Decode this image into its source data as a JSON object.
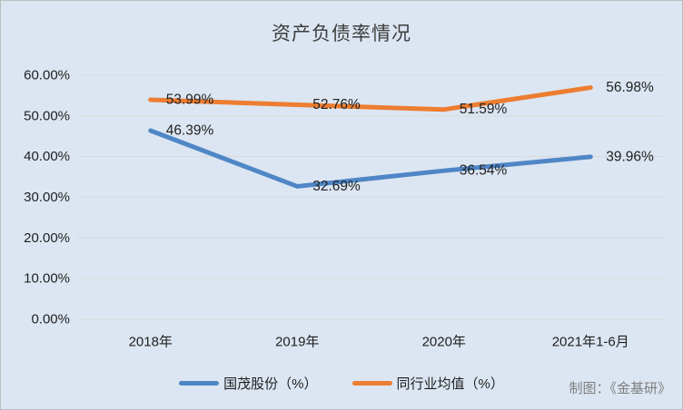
{
  "window": {
    "background_color": "#dce6f2",
    "border_color": "#bdbdbd"
  },
  "chart": {
    "credit": "制图：《金基研》"
  },
  "chart_data": {
    "type": "line",
    "title": "资产负债率情况",
    "categories": [
      "2018年",
      "2019年",
      "2020年",
      "2021年1-6月"
    ],
    "series": [
      {
        "name": "国茂股份（%）",
        "color": "#4f86c6",
        "values": [
          46.39,
          32.69,
          36.54,
          39.96
        ],
        "point_labels": [
          "46.39%",
          "32.69%",
          "36.54%",
          "39.96%"
        ]
      },
      {
        "name": "同行业均值（%）",
        "color": "#ed7d31",
        "values": [
          53.99,
          52.76,
          51.59,
          56.98
        ],
        "point_labels": [
          "53.99%",
          "52.76%",
          "51.59%",
          "56.98%"
        ]
      }
    ],
    "y_axis": {
      "min": 0,
      "max": 60,
      "tick_step": 10,
      "tick_labels": [
        "0.00%",
        "10.00%",
        "20.00%",
        "30.00%",
        "40.00%",
        "50.00%",
        "60.00%"
      ]
    },
    "grid": true,
    "gridline_color": "#d9d9d9",
    "label_color": "#1f1f1f",
    "legend_position": "bottom"
  }
}
